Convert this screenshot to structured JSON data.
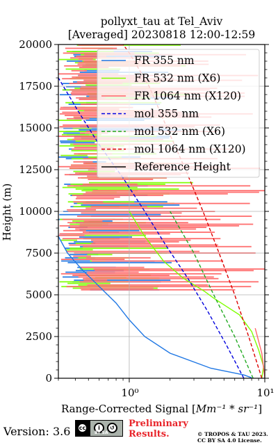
{
  "chart_data": {
    "type": "line",
    "title": "pollyxt_tau at Tel_Aviv",
    "subtitle": "[Averaged] 20230818 12:00-12:59",
    "xlabel": "Range-Corrected Signal [Mm⁻¹ * sr⁻¹]",
    "ylabel": "Height (m)",
    "xscale": "log",
    "xlim": [
      0.3,
      10
    ],
    "ylim": [
      0,
      20000
    ],
    "xticks": [
      1,
      10
    ],
    "xtick_labels": [
      "10⁰",
      "10¹"
    ],
    "yticks": [
      0,
      2500,
      5000,
      7500,
      10000,
      12500,
      15000,
      17500,
      20000
    ],
    "grid": true,
    "legend_position": "top-right",
    "series": [
      {
        "name": "FR 355 nm",
        "style": "solid",
        "color": "#1f77e4",
        "x": [
          8.0,
          7.0,
          4.0,
          2.0,
          1.3,
          1.0,
          0.8,
          0.6,
          0.45,
          0.35,
          0.3
        ],
        "y": [
          30,
          200,
          600,
          1500,
          2500,
          3500,
          4500,
          5500,
          6500,
          7500,
          8500
        ]
      },
      {
        "name": "FR 532 nm (X6)",
        "style": "solid",
        "color": "#7fff00",
        "x": [
          9.5,
          9.8,
          9.0,
          8.0,
          6.5,
          5.0,
          4.2,
          3.6,
          2.5,
          1.8,
          1.3,
          1.0
        ],
        "y": [
          30,
          700,
          1700,
          2800,
          3800,
          4400,
          4800,
          5200,
          6000,
          7000,
          8500,
          10000
        ]
      },
      {
        "name": "FR 1064 nm (X120)",
        "style": "solid",
        "color": "#ff6666",
        "x": [
          10.0,
          9.5,
          8.5
        ],
        "y": [
          30,
          1500,
          3000
        ]
      },
      {
        "name": "mol 355 nm",
        "style": "dashed",
        "color": "#0000dd",
        "x": [
          7.0,
          5.2,
          3.8,
          2.7,
          1.85,
          1.3,
          0.9,
          0.6,
          0.42,
          0.3
        ],
        "y": [
          0,
          2000,
          4000,
          6000,
          8000,
          10000,
          12000,
          14000,
          16000,
          18000
        ]
      },
      {
        "name": "mol 532 nm (X6)",
        "style": "dashed",
        "color": "#22aa22",
        "x": [
          8.2,
          6.0,
          4.2,
          3.0,
          2.0
        ],
        "y": [
          0,
          2500,
          5000,
          7500,
          10000
        ]
      },
      {
        "name": "mol 1064 nm (X120)",
        "style": "dashed",
        "color": "#dd0000",
        "x": [
          9.5,
          7.6,
          6.0,
          4.6,
          3.5,
          2.6,
          1.9,
          1.4,
          1.0,
          0.9
        ],
        "y": [
          0,
          2500,
          5000,
          7500,
          10000,
          12500,
          15000,
          17500,
          19500,
          20000
        ]
      },
      {
        "name": "Reference Height",
        "style": "solid",
        "color": "#000000",
        "x": [],
        "y": []
      }
    ]
  },
  "footer": {
    "version": "Version: 3.6",
    "cc_badge": "BY SA",
    "preliminary_line1": "Preliminary",
    "preliminary_line2": "Results.",
    "copyright_line1": "© TROPOS & TAU 2023.",
    "copyright_line2": "CC BY SA 4.0 License."
  }
}
